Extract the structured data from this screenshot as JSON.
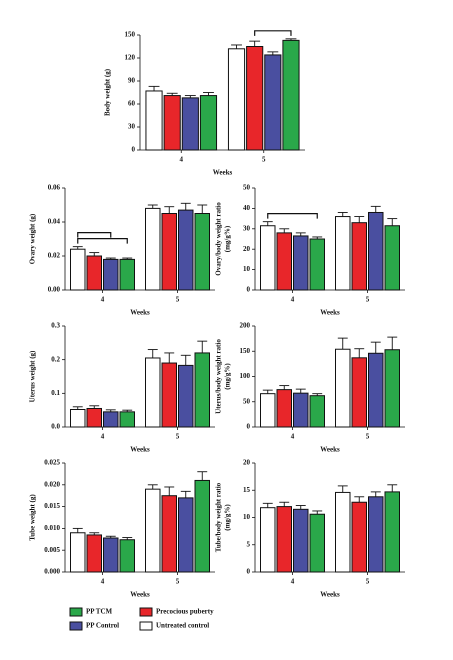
{
  "legend": [
    {
      "name": "Untreated control",
      "color": "#ffffff"
    },
    {
      "name": "Precocious puberty",
      "color": "#e8262a"
    },
    {
      "name": "PP Control",
      "color": "#4a4fa0"
    },
    {
      "name": "PP TCM",
      "color": "#2aa84a"
    }
  ],
  "chart_data": [
    {
      "type": "bar",
      "ylabel": [
        "Body weight (g)"
      ],
      "xlabel": "Weeks",
      "categories": [
        "4",
        "5"
      ],
      "series": [
        {
          "values": [
            77,
            132
          ],
          "errors": [
            6,
            5
          ]
        },
        {
          "values": [
            71,
            135
          ],
          "errors": [
            3,
            7
          ]
        },
        {
          "values": [
            68,
            124
          ],
          "errors": [
            3,
            4
          ]
        },
        {
          "values": [
            71,
            143
          ],
          "errors": [
            4,
            2
          ]
        }
      ],
      "ylim": [
        0,
        150
      ],
      "yticks": [
        0,
        30,
        60,
        90,
        120,
        150
      ]
    },
    {
      "type": "bar",
      "ylabel": [
        "Ovary weight (g)"
      ],
      "xlabel": "Weeks",
      "categories": [
        "4",
        "5"
      ],
      "series": [
        {
          "values": [
            0.024,
            0.048
          ],
          "errors": [
            0.0015,
            0.002
          ]
        },
        {
          "values": [
            0.02,
            0.045
          ],
          "errors": [
            0.002,
            0.004
          ]
        },
        {
          "values": [
            0.018,
            0.047
          ],
          "errors": [
            0.0008,
            0.004
          ]
        },
        {
          "values": [
            0.018,
            0.045
          ],
          "errors": [
            0.0008,
            0.005
          ]
        }
      ],
      "ylim": [
        0,
        0.06
      ],
      "yticks": [
        {
          "value": 0,
          "label": "0.00"
        },
        {
          "value": 0.02,
          "label": "0.02"
        },
        {
          "value": 0.04,
          "label": "0.04"
        },
        {
          "value": 0.06,
          "label": "0.06"
        }
      ]
    },
    {
      "type": "bar",
      "ylabel": [
        "Ovary/body weight ratio",
        "(mg/g%)"
      ],
      "xlabel": "Weeks",
      "categories": [
        "4",
        "5"
      ],
      "series": [
        {
          "values": [
            31.5,
            36
          ],
          "errors": [
            2,
            2
          ]
        },
        {
          "values": [
            28,
            33
          ],
          "errors": [
            2,
            3
          ]
        },
        {
          "values": [
            26.5,
            38
          ],
          "errors": [
            1.5,
            3
          ]
        },
        {
          "values": [
            25,
            31.5
          ],
          "errors": [
            1,
            3.5
          ]
        }
      ],
      "ylim": [
        0,
        50
      ],
      "yticks": [
        0,
        10,
        20,
        30,
        40,
        50
      ]
    },
    {
      "type": "bar",
      "ylabel": [
        "Uterus weight (g)"
      ],
      "xlabel": "Weeks",
      "categories": [
        "4",
        "5"
      ],
      "series": [
        {
          "values": [
            0.052,
            0.205
          ],
          "errors": [
            0.008,
            0.025
          ]
        },
        {
          "values": [
            0.055,
            0.19
          ],
          "errors": [
            0.008,
            0.03
          ]
        },
        {
          "values": [
            0.045,
            0.183
          ],
          "errors": [
            0.006,
            0.03
          ]
        },
        {
          "values": [
            0.045,
            0.22
          ],
          "errors": [
            0.005,
            0.035
          ]
        }
      ],
      "ylim": [
        0,
        0.3
      ],
      "yticks": [
        {
          "value": 0,
          "label": "0.0"
        },
        {
          "value": 0.1,
          "label": "0.1"
        },
        {
          "value": 0.2,
          "label": "0.2"
        },
        {
          "value": 0.3,
          "label": "0.3"
        }
      ]
    },
    {
      "type": "bar",
      "ylabel": [
        "Uterus/body weight ratio",
        "(mg/g%)"
      ],
      "xlabel": "Weeks",
      "categories": [
        "4",
        "5"
      ],
      "series": [
        {
          "values": [
            66,
            154
          ],
          "errors": [
            7,
            22
          ]
        },
        {
          "values": [
            74,
            137
          ],
          "errors": [
            8,
            18
          ]
        },
        {
          "values": [
            67,
            146
          ],
          "errors": [
            8,
            22
          ]
        },
        {
          "values": [
            62,
            153
          ],
          "errors": [
            4,
            25
          ]
        }
      ],
      "ylim": [
        0,
        200
      ],
      "yticks": [
        0,
        50,
        100,
        150,
        200
      ]
    },
    {
      "type": "bar",
      "ylabel": [
        "Tube weight (g)"
      ],
      "xlabel": "Weeks",
      "categories": [
        "4",
        "5"
      ],
      "series": [
        {
          "values": [
            0.009,
            0.019
          ],
          "errors": [
            0.001,
            0.001
          ]
        },
        {
          "values": [
            0.0085,
            0.0175
          ],
          "errors": [
            0.0005,
            0.002
          ]
        },
        {
          "values": [
            0.0078,
            0.017
          ],
          "errors": [
            0.0004,
            0.0015
          ]
        },
        {
          "values": [
            0.0074,
            0.021
          ],
          "errors": [
            0.0005,
            0.002
          ]
        }
      ],
      "ylim": [
        0,
        0.025
      ],
      "yticks": [
        {
          "value": 0,
          "label": "0.000"
        },
        {
          "value": 0.005,
          "label": "0.005"
        },
        {
          "value": 0.01,
          "label": "0.010"
        },
        {
          "value": 0.015,
          "label": "0.015"
        },
        {
          "value": 0.02,
          "label": "0.020"
        },
        {
          "value": 0.025,
          "label": "0.025"
        }
      ]
    },
    {
      "type": "bar",
      "ylabel": [
        "Tube/body weight ratio",
        "(mg/g%)"
      ],
      "xlabel": "Weeks",
      "categories": [
        "4",
        "5"
      ],
      "series": [
        {
          "values": [
            11.8,
            14.6
          ],
          "errors": [
            0.8,
            1.2
          ]
        },
        {
          "values": [
            12,
            12.8
          ],
          "errors": [
            0.8,
            1
          ]
        },
        {
          "values": [
            11.5,
            13.8
          ],
          "errors": [
            0.7,
            0.9
          ]
        },
        {
          "values": [
            10.6,
            14.7
          ],
          "errors": [
            0.6,
            1.3
          ]
        }
      ],
      "ylim": [
        0,
        20
      ],
      "yticks": [
        0,
        5,
        10,
        15,
        20
      ]
    }
  ]
}
